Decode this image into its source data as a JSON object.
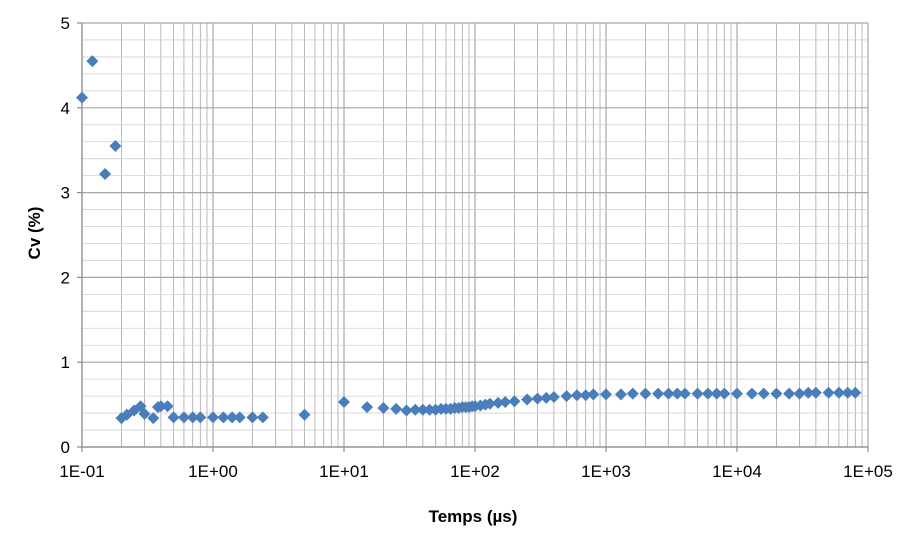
{
  "chart_data": {
    "type": "scatter",
    "title": "",
    "xlabel": "Temps (µs)",
    "ylabel": "Cv (%)",
    "x_scale": "log",
    "xlim": [
      0.1,
      100000
    ],
    "ylim": [
      0,
      5
    ],
    "x_ticks": [
      0.1,
      1,
      10,
      100,
      1000,
      10000,
      100000
    ],
    "x_tick_labels": [
      "1E-01",
      "1E+00",
      "1E+01",
      "1E+02",
      "1E+03",
      "1E+04",
      "1E+05"
    ],
    "y_ticks": [
      0,
      1,
      2,
      3,
      4,
      5
    ],
    "y_tick_labels": [
      "0",
      "1",
      "2",
      "3",
      "4",
      "5"
    ],
    "grid": true,
    "legend": "none",
    "marker": "diamond",
    "marker_color": "#4a7ebb",
    "series": [
      {
        "x": [
          0.1,
          0.12,
          0.15,
          0.18,
          0.2,
          0.22,
          0.25,
          0.28,
          0.3,
          0.35,
          0.38,
          0.4,
          0.45,
          0.5,
          0.6,
          0.7,
          0.8,
          1.0,
          1.2,
          1.4,
          1.6,
          2.0,
          2.4,
          5.0,
          10,
          15,
          20,
          25,
          30,
          35,
          40,
          45,
          50,
          55,
          60,
          65,
          70,
          75,
          80,
          85,
          90,
          95,
          100,
          110,
          120,
          130,
          150,
          170,
          200,
          250,
          300,
          350,
          400,
          500,
          600,
          700,
          800,
          1000,
          1300,
          1600,
          2000,
          2500,
          3000,
          3500,
          4000,
          5000,
          6000,
          7000,
          8000,
          10000,
          13000,
          16000,
          20000,
          25000,
          30000,
          35000,
          40000,
          50000,
          60000,
          70000,
          80000
        ],
        "y": [
          4.12,
          4.55,
          3.22,
          3.55,
          0.34,
          0.38,
          0.43,
          0.48,
          0.39,
          0.34,
          0.47,
          0.48,
          0.48,
          0.35,
          0.35,
          0.35,
          0.35,
          0.35,
          0.35,
          0.35,
          0.35,
          0.35,
          0.35,
          0.38,
          0.53,
          0.47,
          0.46,
          0.45,
          0.43,
          0.44,
          0.44,
          0.44,
          0.44,
          0.45,
          0.45,
          0.45,
          0.46,
          0.46,
          0.47,
          0.47,
          0.47,
          0.48,
          0.48,
          0.49,
          0.5,
          0.51,
          0.52,
          0.53,
          0.54,
          0.56,
          0.57,
          0.58,
          0.59,
          0.6,
          0.61,
          0.61,
          0.62,
          0.62,
          0.62,
          0.63,
          0.63,
          0.63,
          0.63,
          0.63,
          0.63,
          0.63,
          0.63,
          0.63,
          0.63,
          0.63,
          0.63,
          0.63,
          0.63,
          0.63,
          0.63,
          0.64,
          0.64,
          0.64,
          0.64,
          0.64,
          0.64
        ]
      }
    ]
  },
  "colors": {
    "marker": "#4a7ebb",
    "grid": "#a6a6a6",
    "axis": "#8c8c8c"
  }
}
